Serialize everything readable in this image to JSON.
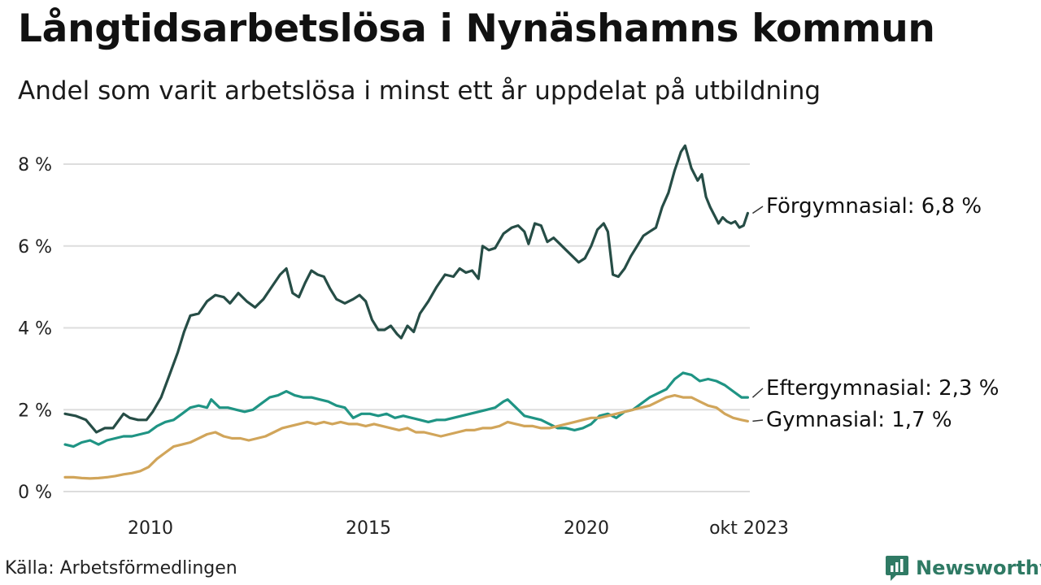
{
  "header": {
    "title": "Långtidsarbetslösa i Nynäshamns kommun",
    "subtitle": "Andel som varit arbetslösa i minst ett år uppdelat på utbildning"
  },
  "footer": {
    "source": "Källa: Arbetsförmedlingen",
    "brand": "Newsworthy",
    "brand_icon": "newsworthy-logo-icon"
  },
  "colors": {
    "forgymnasial": "#264d46",
    "eftergymnasial": "#1f9484",
    "gymnasial": "#d1a55a",
    "grid": "#dddddd",
    "brand": "#2f7a64"
  },
  "chart_data": {
    "type": "line",
    "title": "Långtidsarbetslösa i Nynäshamns kommun",
    "subtitle": "Andel som varit arbetslösa i minst ett år uppdelat på utbildning",
    "xlabel": "",
    "ylabel": "",
    "x_start": "jan 2008",
    "x_end": "okt 2023",
    "xlim": [
      2008.0,
      2023.75
    ],
    "ylim": [
      0,
      8
    ],
    "grid": true,
    "legend": "direct labels at line ends (right)",
    "y_ticks": [
      {
        "value": 0,
        "label": "0 %"
      },
      {
        "value": 2,
        "label": "2 %"
      },
      {
        "value": 4,
        "label": "4 %"
      },
      {
        "value": 6,
        "label": "6 %"
      },
      {
        "value": 8,
        "label": "8 %"
      }
    ],
    "x_ticks": [
      {
        "value": 2010,
        "label": "2010"
      },
      {
        "value": 2015,
        "label": "2015"
      },
      {
        "value": 2020,
        "label": "2020"
      },
      {
        "value": 2023.75,
        "label": "okt 2023"
      }
    ],
    "series": [
      {
        "key": "forgymnasial",
        "name": "Förgymnasial",
        "end_label": "Förgymnasial: 6,8 %",
        "points": [
          [
            2008.0,
            1.9
          ],
          [
            2008.25,
            1.85
          ],
          [
            2008.5,
            1.75
          ],
          [
            2008.75,
            1.45
          ],
          [
            2008.95,
            1.55
          ],
          [
            2009.15,
            1.55
          ],
          [
            2009.4,
            1.9
          ],
          [
            2009.55,
            1.8
          ],
          [
            2009.75,
            1.75
          ],
          [
            2009.95,
            1.75
          ],
          [
            2010.1,
            1.95
          ],
          [
            2010.3,
            2.3
          ],
          [
            2010.5,
            2.85
          ],
          [
            2010.7,
            3.4
          ],
          [
            2010.85,
            3.9
          ],
          [
            2011.0,
            4.3
          ],
          [
            2011.2,
            4.35
          ],
          [
            2011.4,
            4.65
          ],
          [
            2011.6,
            4.8
          ],
          [
            2011.8,
            4.75
          ],
          [
            2011.95,
            4.6
          ],
          [
            2012.15,
            4.85
          ],
          [
            2012.35,
            4.65
          ],
          [
            2012.55,
            4.5
          ],
          [
            2012.75,
            4.7
          ],
          [
            2012.95,
            5.0
          ],
          [
            2013.15,
            5.3
          ],
          [
            2013.3,
            5.45
          ],
          [
            2013.45,
            4.85
          ],
          [
            2013.6,
            4.75
          ],
          [
            2013.75,
            5.1
          ],
          [
            2013.9,
            5.4
          ],
          [
            2014.05,
            5.3
          ],
          [
            2014.2,
            5.25
          ],
          [
            2014.35,
            4.95
          ],
          [
            2014.5,
            4.7
          ],
          [
            2014.7,
            4.6
          ],
          [
            2014.9,
            4.7
          ],
          [
            2015.05,
            4.8
          ],
          [
            2015.2,
            4.65
          ],
          [
            2015.35,
            4.2
          ],
          [
            2015.5,
            3.95
          ],
          [
            2015.65,
            3.95
          ],
          [
            2015.8,
            4.05
          ],
          [
            2015.95,
            3.85
          ],
          [
            2016.05,
            3.75
          ],
          [
            2016.2,
            4.05
          ],
          [
            2016.35,
            3.9
          ],
          [
            2016.5,
            4.35
          ],
          [
            2016.7,
            4.65
          ],
          [
            2016.9,
            5.0
          ],
          [
            2017.1,
            5.3
          ],
          [
            2017.3,
            5.25
          ],
          [
            2017.45,
            5.45
          ],
          [
            2017.6,
            5.35
          ],
          [
            2017.75,
            5.4
          ],
          [
            2017.9,
            5.2
          ],
          [
            2018.0,
            6.0
          ],
          [
            2018.15,
            5.9
          ],
          [
            2018.3,
            5.95
          ],
          [
            2018.5,
            6.3
          ],
          [
            2018.7,
            6.45
          ],
          [
            2018.85,
            6.5
          ],
          [
            2019.0,
            6.35
          ],
          [
            2019.1,
            6.05
          ],
          [
            2019.25,
            6.55
          ],
          [
            2019.4,
            6.5
          ],
          [
            2019.55,
            6.1
          ],
          [
            2019.7,
            6.2
          ],
          [
            2019.85,
            6.05
          ],
          [
            2020.0,
            5.9
          ],
          [
            2020.15,
            5.75
          ],
          [
            2020.3,
            5.6
          ],
          [
            2020.45,
            5.7
          ],
          [
            2020.6,
            6.0
          ],
          [
            2020.75,
            6.4
          ],
          [
            2020.9,
            6.55
          ],
          [
            2021.0,
            6.35
          ],
          [
            2021.12,
            5.3
          ],
          [
            2021.25,
            5.25
          ],
          [
            2021.4,
            5.45
          ],
          [
            2021.55,
            5.75
          ],
          [
            2021.7,
            6.0
          ],
          [
            2021.85,
            6.25
          ],
          [
            2022.0,
            6.35
          ],
          [
            2022.15,
            6.45
          ],
          [
            2022.3,
            6.95
          ],
          [
            2022.45,
            7.3
          ],
          [
            2022.6,
            7.85
          ],
          [
            2022.75,
            8.3
          ],
          [
            2022.85,
            8.45
          ],
          [
            2023.0,
            7.9
          ],
          [
            2023.15,
            7.6
          ],
          [
            2023.25,
            7.75
          ],
          [
            2023.35,
            7.2
          ],
          [
            2023.45,
            6.95
          ],
          [
            2023.55,
            6.75
          ],
          [
            2023.65,
            6.55
          ],
          [
            2023.75,
            6.7
          ],
          [
            2023.85,
            6.6
          ],
          [
            2023.95,
            6.55
          ],
          [
            2024.05,
            6.6
          ],
          [
            2024.15,
            6.45
          ],
          [
            2024.25,
            6.5
          ],
          [
            2024.35,
            6.8
          ]
        ]
      },
      {
        "key": "eftergymnasial",
        "name": "Eftergymnasial",
        "end_label": "Eftergymnasial: 2,3 %",
        "points": [
          [
            2008.0,
            1.15
          ],
          [
            2008.2,
            1.1
          ],
          [
            2008.4,
            1.2
          ],
          [
            2008.6,
            1.25
          ],
          [
            2008.8,
            1.15
          ],
          [
            2009.0,
            1.25
          ],
          [
            2009.2,
            1.3
          ],
          [
            2009.4,
            1.35
          ],
          [
            2009.6,
            1.35
          ],
          [
            2009.8,
            1.4
          ],
          [
            2010.0,
            1.45
          ],
          [
            2010.2,
            1.6
          ],
          [
            2010.4,
            1.7
          ],
          [
            2010.6,
            1.75
          ],
          [
            2010.8,
            1.9
          ],
          [
            2011.0,
            2.05
          ],
          [
            2011.2,
            2.1
          ],
          [
            2011.4,
            2.05
          ],
          [
            2011.5,
            2.25
          ],
          [
            2011.7,
            2.05
          ],
          [
            2011.9,
            2.05
          ],
          [
            2012.1,
            2.0
          ],
          [
            2012.3,
            1.95
          ],
          [
            2012.5,
            2.0
          ],
          [
            2012.7,
            2.15
          ],
          [
            2012.9,
            2.3
          ],
          [
            2013.1,
            2.35
          ],
          [
            2013.3,
            2.45
          ],
          [
            2013.5,
            2.35
          ],
          [
            2013.7,
            2.3
          ],
          [
            2013.9,
            2.3
          ],
          [
            2014.1,
            2.25
          ],
          [
            2014.3,
            2.2
          ],
          [
            2014.5,
            2.1
          ],
          [
            2014.7,
            2.05
          ],
          [
            2014.9,
            1.8
          ],
          [
            2015.1,
            1.9
          ],
          [
            2015.3,
            1.9
          ],
          [
            2015.5,
            1.85
          ],
          [
            2015.7,
            1.9
          ],
          [
            2015.9,
            1.8
          ],
          [
            2016.1,
            1.85
          ],
          [
            2016.3,
            1.8
          ],
          [
            2016.5,
            1.75
          ],
          [
            2016.7,
            1.7
          ],
          [
            2016.9,
            1.75
          ],
          [
            2017.1,
            1.75
          ],
          [
            2017.3,
            1.8
          ],
          [
            2017.5,
            1.85
          ],
          [
            2017.7,
            1.9
          ],
          [
            2017.9,
            1.95
          ],
          [
            2018.1,
            2.0
          ],
          [
            2018.3,
            2.05
          ],
          [
            2018.5,
            2.2
          ],
          [
            2018.6,
            2.25
          ],
          [
            2018.8,
            2.05
          ],
          [
            2019.0,
            1.85
          ],
          [
            2019.2,
            1.8
          ],
          [
            2019.4,
            1.75
          ],
          [
            2019.6,
            1.65
          ],
          [
            2019.8,
            1.55
          ],
          [
            2020.0,
            1.55
          ],
          [
            2020.2,
            1.5
          ],
          [
            2020.4,
            1.55
          ],
          [
            2020.6,
            1.65
          ],
          [
            2020.8,
            1.85
          ],
          [
            2021.0,
            1.9
          ],
          [
            2021.2,
            1.8
          ],
          [
            2021.4,
            1.95
          ],
          [
            2021.6,
            2.0
          ],
          [
            2021.8,
            2.15
          ],
          [
            2022.0,
            2.3
          ],
          [
            2022.2,
            2.4
          ],
          [
            2022.4,
            2.5
          ],
          [
            2022.6,
            2.75
          ],
          [
            2022.8,
            2.9
          ],
          [
            2023.0,
            2.85
          ],
          [
            2023.2,
            2.7
          ],
          [
            2023.4,
            2.75
          ],
          [
            2023.6,
            2.7
          ],
          [
            2023.8,
            2.6
          ],
          [
            2024.0,
            2.45
          ],
          [
            2024.2,
            2.3
          ],
          [
            2024.35,
            2.3
          ]
        ]
      },
      {
        "key": "gymnasial",
        "name": "Gymnasial",
        "end_label": "Gymnasial: 1,7 %",
        "points": [
          [
            2008.0,
            0.35
          ],
          [
            2008.2,
            0.35
          ],
          [
            2008.4,
            0.33
          ],
          [
            2008.6,
            0.32
          ],
          [
            2008.8,
            0.33
          ],
          [
            2009.0,
            0.35
          ],
          [
            2009.2,
            0.38
          ],
          [
            2009.4,
            0.42
          ],
          [
            2009.6,
            0.45
          ],
          [
            2009.8,
            0.5
          ],
          [
            2010.0,
            0.6
          ],
          [
            2010.2,
            0.8
          ],
          [
            2010.4,
            0.95
          ],
          [
            2010.6,
            1.1
          ],
          [
            2010.8,
            1.15
          ],
          [
            2011.0,
            1.2
          ],
          [
            2011.2,
            1.3
          ],
          [
            2011.4,
            1.4
          ],
          [
            2011.6,
            1.45
          ],
          [
            2011.8,
            1.35
          ],
          [
            2012.0,
            1.3
          ],
          [
            2012.2,
            1.3
          ],
          [
            2012.4,
            1.25
          ],
          [
            2012.6,
            1.3
          ],
          [
            2012.8,
            1.35
          ],
          [
            2013.0,
            1.45
          ],
          [
            2013.2,
            1.55
          ],
          [
            2013.4,
            1.6
          ],
          [
            2013.6,
            1.65
          ],
          [
            2013.8,
            1.7
          ],
          [
            2014.0,
            1.65
          ],
          [
            2014.2,
            1.7
          ],
          [
            2014.4,
            1.65
          ],
          [
            2014.6,
            1.7
          ],
          [
            2014.8,
            1.65
          ],
          [
            2015.0,
            1.65
          ],
          [
            2015.2,
            1.6
          ],
          [
            2015.4,
            1.65
          ],
          [
            2015.6,
            1.6
          ],
          [
            2015.8,
            1.55
          ],
          [
            2016.0,
            1.5
          ],
          [
            2016.2,
            1.55
          ],
          [
            2016.4,
            1.45
          ],
          [
            2016.6,
            1.45
          ],
          [
            2016.8,
            1.4
          ],
          [
            2017.0,
            1.35
          ],
          [
            2017.2,
            1.4
          ],
          [
            2017.4,
            1.45
          ],
          [
            2017.6,
            1.5
          ],
          [
            2017.8,
            1.5
          ],
          [
            2018.0,
            1.55
          ],
          [
            2018.2,
            1.55
          ],
          [
            2018.4,
            1.6
          ],
          [
            2018.6,
            1.7
          ],
          [
            2018.8,
            1.65
          ],
          [
            2019.0,
            1.6
          ],
          [
            2019.2,
            1.6
          ],
          [
            2019.4,
            1.55
          ],
          [
            2019.6,
            1.55
          ],
          [
            2019.8,
            1.6
          ],
          [
            2020.0,
            1.65
          ],
          [
            2020.2,
            1.7
          ],
          [
            2020.4,
            1.75
          ],
          [
            2020.6,
            1.8
          ],
          [
            2020.8,
            1.8
          ],
          [
            2021.0,
            1.85
          ],
          [
            2021.2,
            1.9
          ],
          [
            2021.4,
            1.95
          ],
          [
            2021.6,
            2.0
          ],
          [
            2021.8,
            2.05
          ],
          [
            2022.0,
            2.1
          ],
          [
            2022.2,
            2.2
          ],
          [
            2022.4,
            2.3
          ],
          [
            2022.6,
            2.35
          ],
          [
            2022.8,
            2.3
          ],
          [
            2023.0,
            2.3
          ],
          [
            2023.2,
            2.2
          ],
          [
            2023.4,
            2.1
          ],
          [
            2023.6,
            2.05
          ],
          [
            2023.8,
            1.9
          ],
          [
            2024.0,
            1.8
          ],
          [
            2024.2,
            1.75
          ],
          [
            2024.35,
            1.72
          ]
        ]
      }
    ]
  }
}
